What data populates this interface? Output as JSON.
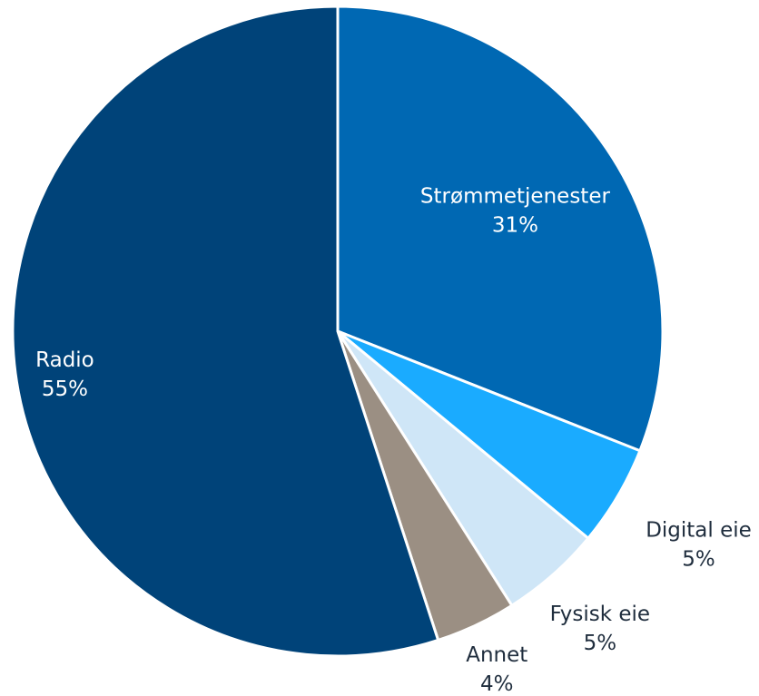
{
  "chart_data": {
    "type": "pie",
    "categories": [
      "Strømmetjenester",
      "Digital eie",
      "Fysisk eie",
      "Annet",
      "Radio"
    ],
    "values": [
      31,
      5,
      5,
      4,
      55
    ],
    "value_labels": [
      "31%",
      "5%",
      "5%",
      "4%",
      "55%"
    ],
    "colors": [
      "#0068b3",
      "#1aabff",
      "#cfe6f7",
      "#9b8f83",
      "#004379"
    ]
  }
}
